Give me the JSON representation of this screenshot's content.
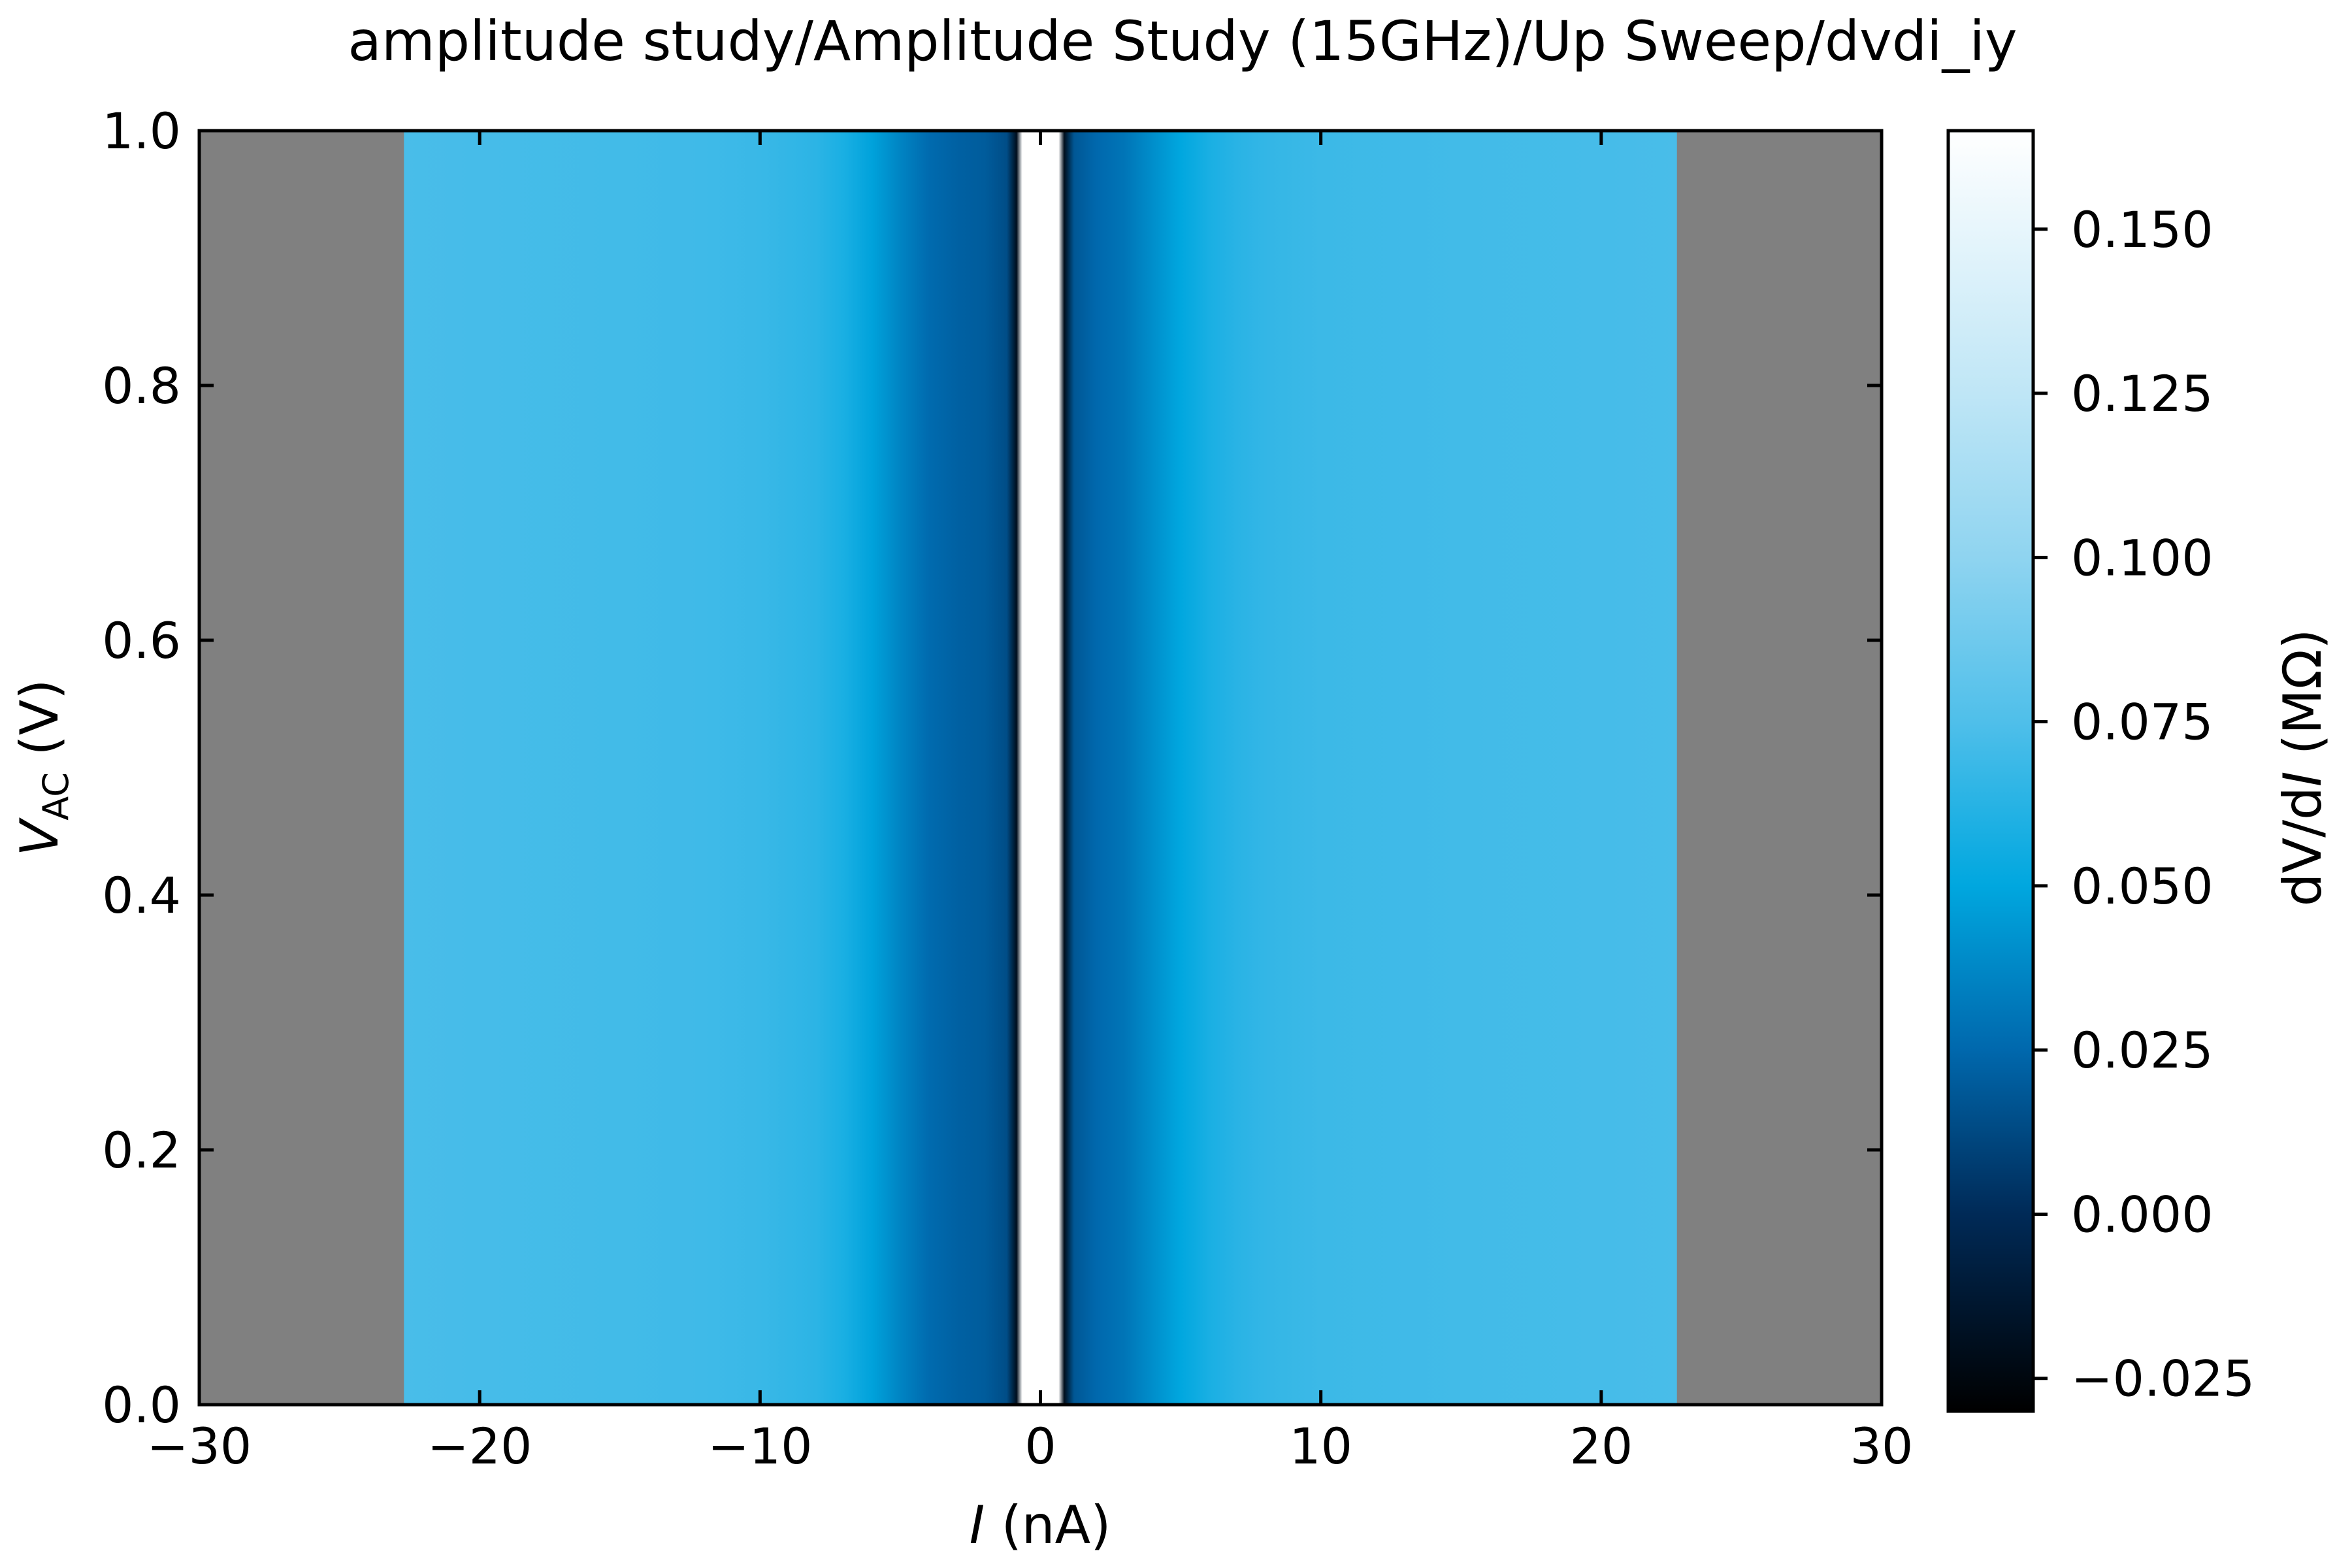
{
  "chart_data": {
    "type": "heatmap",
    "title": "amplitude study/Amplitude Study (15GHz)/Up Sweep/dvdi_iy",
    "xlabel": {
      "var": "I",
      "unit": " (nA)"
    },
    "ylabel": {
      "var": "V",
      "sub": "AC",
      "unit": " (V)"
    },
    "colorbar_label": {
      "pre": "dV/d",
      "var": "I",
      "unit": " (MΩ)"
    },
    "xlim": [
      -30,
      30
    ],
    "ylim": [
      0,
      1
    ],
    "clim": [
      -0.03,
      0.165
    ],
    "x_ticks": [
      -30,
      -20,
      -10,
      0,
      10,
      20,
      30
    ],
    "x_tick_labels": [
      "−30",
      "−20",
      "−10",
      "0",
      "10",
      "20",
      "30"
    ],
    "y_ticks": [
      0.0,
      0.2,
      0.4,
      0.6,
      0.8,
      1.0
    ],
    "y_tick_labels": [
      "0.0",
      "0.2",
      "0.4",
      "0.6",
      "0.8",
      "1.0"
    ],
    "colorbar_ticks": [
      -0.025,
      0.0,
      0.025,
      0.05,
      0.075,
      0.1,
      0.125,
      0.15
    ],
    "colorbar_tick_labels": [
      "−0.025",
      "0.000",
      "0.025",
      "0.050",
      "0.075",
      "0.100",
      "0.125",
      "0.150"
    ],
    "data_range_x": [
      -22.7,
      22.7
    ],
    "nan_color": "#808080",
    "colormap": [
      [
        -0.03,
        "#000000"
      ],
      [
        0.0,
        "#002a57"
      ],
      [
        0.025,
        "#0068ad"
      ],
      [
        0.05,
        "#00a7df"
      ],
      [
        0.075,
        "#4fbfea"
      ],
      [
        0.1,
        "#8fd4f0"
      ],
      [
        0.125,
        "#bfe6f6"
      ],
      [
        0.165,
        "#ffffff"
      ]
    ],
    "profile": [
      [
        -22.7,
        0.073
      ],
      [
        -20,
        0.072
      ],
      [
        -15,
        0.071
      ],
      [
        -12,
        0.07
      ],
      [
        -10,
        0.068
      ],
      [
        -8,
        0.064
      ],
      [
        -7,
        0.058
      ],
      [
        -6,
        0.048
      ],
      [
        -5,
        0.036
      ],
      [
        -4,
        0.026
      ],
      [
        -3,
        0.022
      ],
      [
        -2,
        0.02
      ],
      [
        -1.2,
        0.014
      ],
      [
        -0.85,
        -0.02
      ],
      [
        -0.65,
        0.165
      ],
      [
        0.65,
        0.165
      ],
      [
        0.85,
        -0.02
      ],
      [
        1.2,
        0.018
      ],
      [
        2,
        0.025
      ],
      [
        3,
        0.03
      ],
      [
        4,
        0.04
      ],
      [
        5,
        0.05
      ],
      [
        6,
        0.058
      ],
      [
        7,
        0.063
      ],
      [
        8,
        0.066
      ],
      [
        10,
        0.069
      ],
      [
        15,
        0.071
      ],
      [
        20,
        0.072
      ],
      [
        22.7,
        0.073
      ]
    ]
  }
}
